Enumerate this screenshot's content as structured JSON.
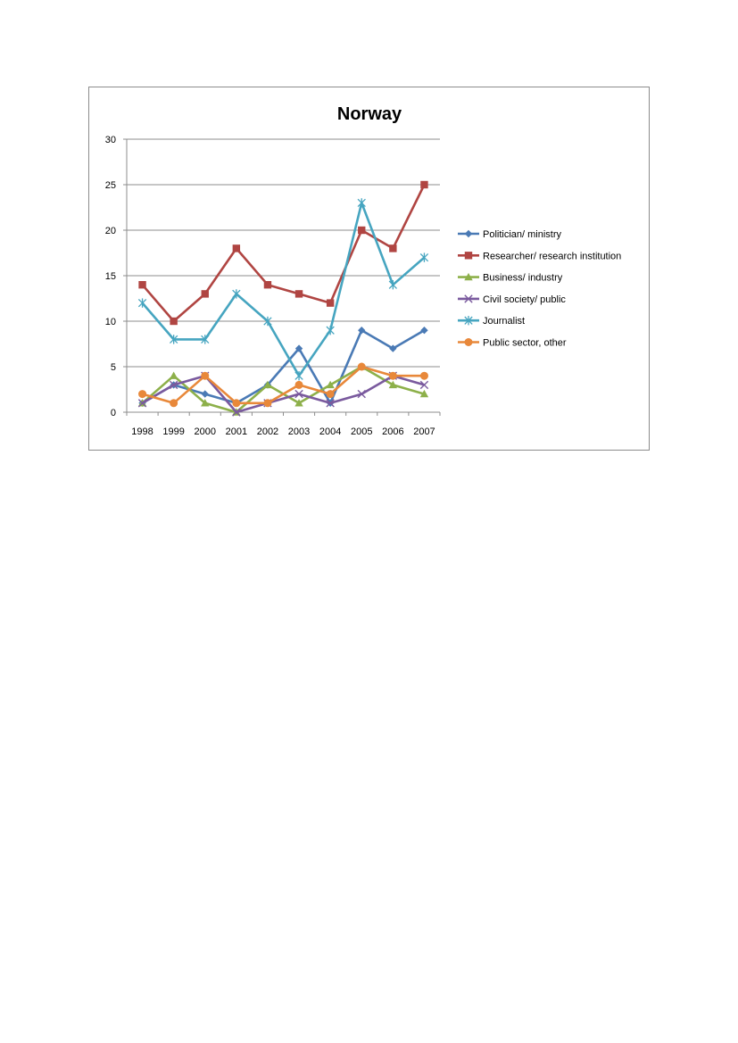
{
  "chart_data": {
    "type": "line",
    "title": "Norway",
    "xlabel": "",
    "ylabel": "",
    "ylim": [
      0,
      30
    ],
    "yticks": [
      0,
      5,
      10,
      15,
      20,
      25,
      30
    ],
    "grid": true,
    "legend_position": "right",
    "categories": [
      "1998",
      "1999",
      "2000",
      "2001",
      "2002",
      "2003",
      "2004",
      "2005",
      "2006",
      "2007"
    ],
    "series": [
      {
        "name": "Politician/ ministry",
        "color": "#4a7ab5",
        "marker": "diamond",
        "values": [
          1,
          3,
          2,
          1,
          3,
          7,
          1,
          9,
          7,
          9
        ]
      },
      {
        "name": "Researcher/ research institution",
        "color": "#b04542",
        "marker": "square",
        "values": [
          14,
          10,
          13,
          18,
          14,
          13,
          12,
          20,
          18,
          25
        ]
      },
      {
        "name": "Business/ industry",
        "color": "#8db04a",
        "marker": "triangle",
        "values": [
          1,
          4,
          1,
          0,
          3,
          1,
          3,
          5,
          3,
          2
        ]
      },
      {
        "name": "Civil society/ public",
        "color": "#7a5a9e",
        "marker": "x",
        "values": [
          1,
          3,
          4,
          0,
          1,
          2,
          1,
          2,
          4,
          3
        ]
      },
      {
        "name": "Journalist",
        "color": "#46a5c0",
        "marker": "star",
        "values": [
          12,
          8,
          8,
          13,
          10,
          4,
          9,
          23,
          14,
          17
        ]
      },
      {
        "name": "Public sector, other",
        "color": "#e8883a",
        "marker": "circle",
        "values": [
          2,
          1,
          4,
          1,
          1,
          3,
          2,
          5,
          4,
          4
        ]
      }
    ]
  }
}
